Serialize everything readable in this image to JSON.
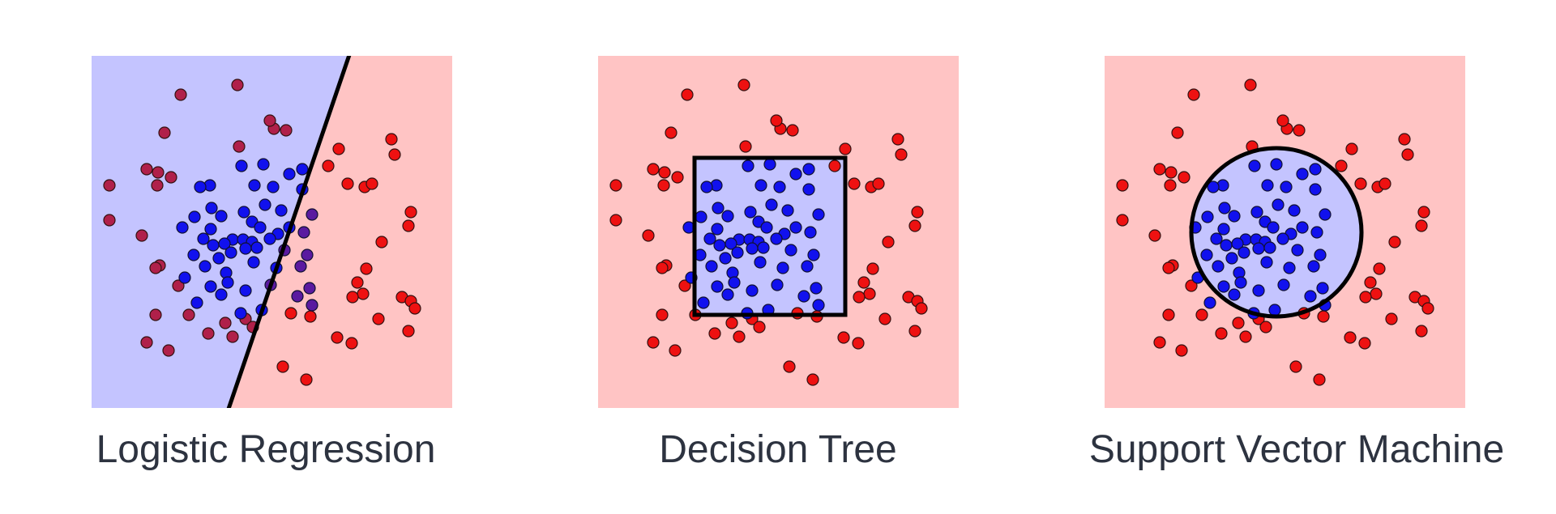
{
  "panels": [
    {
      "title": "Logistic Regression",
      "boundary": "line"
    },
    {
      "title": "Decision Tree",
      "boundary": "rectangle"
    },
    {
      "title": "Support Vector Machine",
      "boundary": "ellipse"
    }
  ],
  "colors": {
    "class_a_point": "#ee1111",
    "class_b_point": "#1111ee",
    "region_a": "#ffc4c4",
    "region_b": "#c4c4ff",
    "boundary": "#000000",
    "caption": "#2d3340"
  }
}
